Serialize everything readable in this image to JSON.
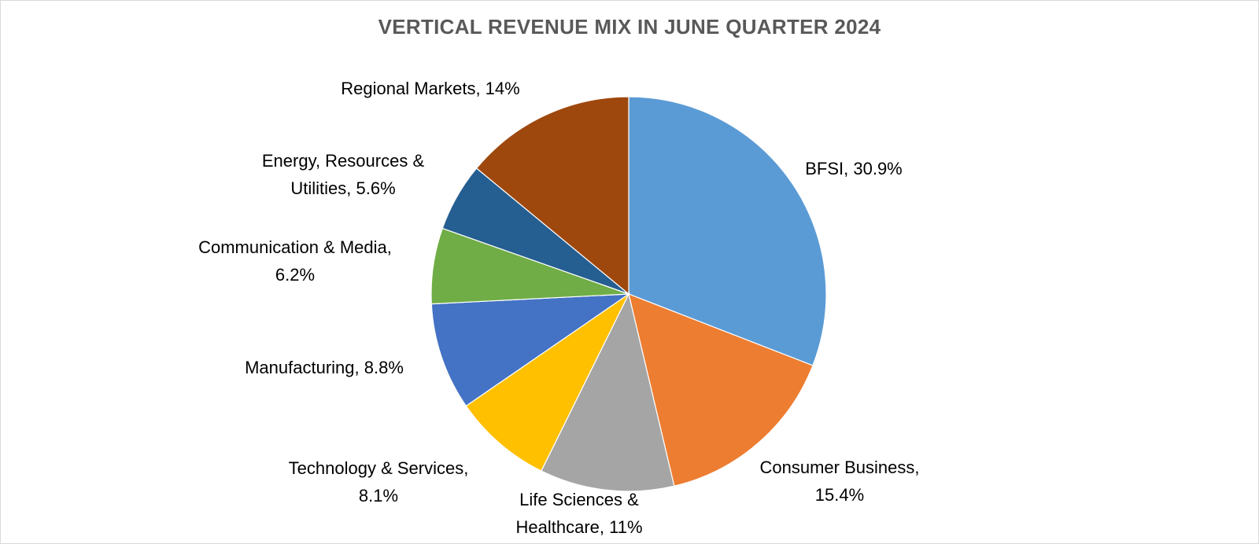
{
  "chart_data": {
    "type": "pie",
    "title": "VERTICAL REVENUE MIX IN JUNE QUARTER 2024",
    "slices": [
      {
        "name": "BFSI",
        "value": 30.9,
        "label_lines": [
          "BFSI, 30.9%"
        ],
        "color": "#5B9BD5"
      },
      {
        "name": "Consumer Business",
        "value": 15.4,
        "label_lines": [
          "Consumer  Business,",
          "15.4%"
        ],
        "color": "#ED7D31"
      },
      {
        "name": "Life Sciences & Healthcare",
        "value": 11,
        "label_lines": [
          "Life Sciences &",
          "Healthcare, 11%"
        ],
        "color": "#A5A5A5"
      },
      {
        "name": "Technology & Services",
        "value": 8.1,
        "label_lines": [
          "Technology & Services,",
          "8.1%"
        ],
        "color": "#FFC000"
      },
      {
        "name": "Manufacturing",
        "value": 8.8,
        "label_lines": [
          "Manufacturing, 8.8%"
        ],
        "color": "#4472C4"
      },
      {
        "name": "Communication & Media",
        "value": 6.2,
        "label_lines": [
          "Communication & Media,",
          "6.2%"
        ],
        "color": "#70AD47"
      },
      {
        "name": "Energy, Resources & Utilities",
        "value": 5.6,
        "label_lines": [
          "Energy, Resources &",
          "Utilities, 5.6%"
        ],
        "color": "#255E91"
      },
      {
        "name": "Regional Markets",
        "value": 14,
        "label_lines": [
          "Regional Markets, 14%"
        ],
        "color": "#9E480E"
      }
    ]
  }
}
